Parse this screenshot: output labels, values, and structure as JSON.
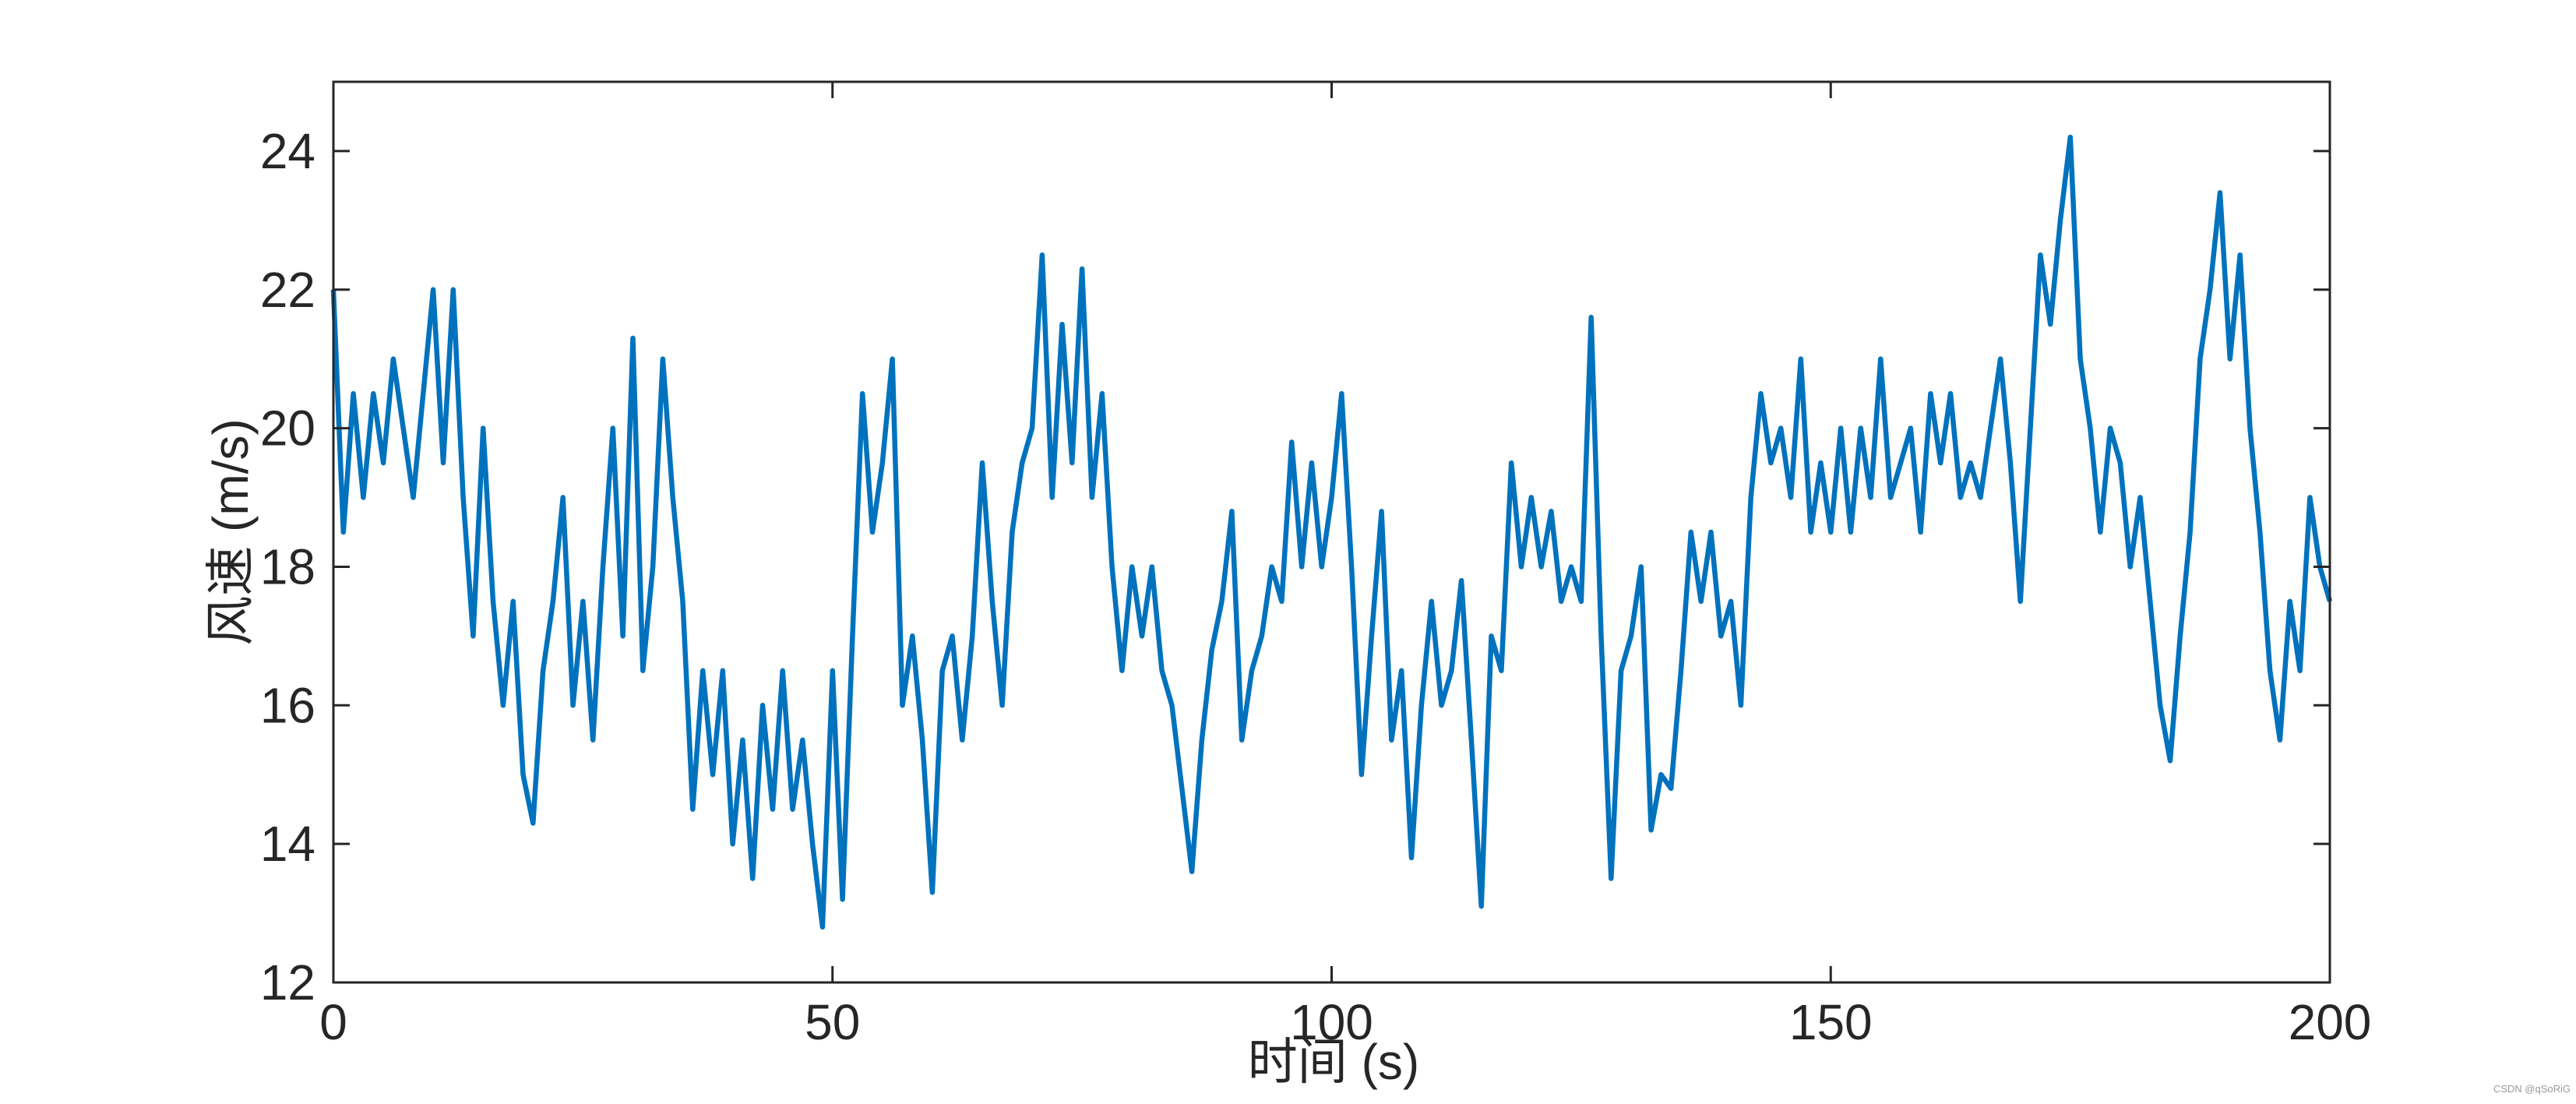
{
  "chart_data": {
    "type": "line",
    "xlabel": "时间 (s)",
    "ylabel": "风速 (m/s)",
    "watermark": "CSDN @qSoRiG",
    "color": "#0072BD",
    "x": [
      0,
      1,
      2,
      3,
      4,
      5,
      6,
      7,
      8,
      9,
      10,
      11,
      12,
      13,
      14,
      15,
      16,
      17,
      18,
      19,
      20,
      21,
      22,
      23,
      24,
      25,
      26,
      27,
      28,
      29,
      30,
      31,
      32,
      33,
      34,
      35,
      36,
      37,
      38,
      39,
      40,
      41,
      42,
      43,
      44,
      45,
      46,
      47,
      48,
      49,
      50,
      51,
      52,
      53,
      54,
      55,
      56,
      57,
      58,
      59,
      60,
      61,
      62,
      63,
      64,
      65,
      66,
      67,
      68,
      69,
      70,
      71,
      72,
      73,
      74,
      75,
      76,
      77,
      78,
      79,
      80,
      81,
      82,
      83,
      84,
      85,
      86,
      87,
      88,
      89,
      90,
      91,
      92,
      93,
      94,
      95,
      96,
      97,
      98,
      99,
      100,
      101,
      102,
      103,
      104,
      105,
      106,
      107,
      108,
      109,
      110,
      111,
      112,
      113,
      114,
      115,
      116,
      117,
      118,
      119,
      120,
      121,
      122,
      123,
      124,
      125,
      126,
      127,
      128,
      129,
      130,
      131,
      132,
      133,
      134,
      135,
      136,
      137,
      138,
      139,
      140,
      141,
      142,
      143,
      144,
      145,
      146,
      147,
      148,
      149,
      150,
      151,
      152,
      153,
      154,
      155,
      156,
      157,
      158,
      159,
      160,
      161,
      162,
      163,
      164,
      165,
      166,
      167,
      168,
      169,
      170,
      171,
      172,
      173,
      174,
      175,
      176,
      177,
      178,
      179,
      180,
      181,
      182,
      183,
      184,
      185,
      186,
      187,
      188,
      189,
      190,
      191,
      192,
      193,
      194,
      195,
      196,
      197,
      198,
      199,
      200
    ],
    "values": [
      22,
      18.5,
      20.5,
      19,
      20.5,
      19.5,
      21,
      20,
      19,
      20.5,
      22,
      19.5,
      22,
      19,
      17,
      20,
      17.5,
      16,
      17.5,
      15,
      14.3,
      16.5,
      17.5,
      19,
      16,
      17.5,
      15.5,
      18,
      20,
      17,
      21.3,
      16.5,
      18,
      21,
      19,
      17.5,
      14.5,
      16.5,
      15,
      16.5,
      14,
      15.5,
      13.5,
      16,
      14.5,
      16.5,
      14.5,
      15.5,
      14,
      12.8,
      16.5,
      13.2,
      17,
      20.5,
      18.5,
      19.5,
      21,
      16,
      17,
      15.5,
      13.3,
      16.5,
      17,
      15.5,
      17,
      19.5,
      17.5,
      16,
      18.5,
      19.5,
      20,
      22.5,
      19,
      21.5,
      19.5,
      22.3,
      19,
      20.5,
      18,
      16.5,
      18,
      17,
      18,
      16.5,
      16,
      14.8,
      13.6,
      15.5,
      16.8,
      17.5,
      18.8,
      15.5,
      16.5,
      17,
      18,
      17.5,
      19.8,
      18,
      19.5,
      18,
      19,
      20.5,
      18,
      15,
      17,
      18.8,
      15.5,
      16.5,
      13.8,
      16,
      17.5,
      16,
      16.5,
      17.8,
      15.5,
      13.1,
      17,
      16.5,
      19.5,
      18,
      19,
      18,
      18.8,
      17.5,
      18,
      17.5,
      21.6,
      17,
      13.5,
      16.5,
      17,
      18,
      14.2,
      15,
      14.8,
      16.5,
      18.5,
      17.5,
      18.5,
      17,
      17.5,
      16,
      19,
      20.5,
      19.5,
      20,
      19,
      21,
      18.5,
      19.5,
      18.5,
      20,
      18.5,
      20,
      19,
      21,
      19,
      19.5,
      20,
      18.5,
      20.5,
      19.5,
      20.5,
      19,
      19.5,
      19,
      20,
      21,
      19.5,
      17.5,
      20,
      22.5,
      21.5,
      23,
      24.2,
      21,
      20,
      18.5,
      20,
      19.5,
      18,
      19,
      17.5,
      16,
      15.2,
      17,
      18.5,
      21,
      22,
      23.4,
      21,
      22.5,
      20,
      18.5,
      16.5,
      15.5,
      17.5,
      16.5,
      19,
      18,
      17.5
    ],
    "xlim": [
      0,
      200
    ],
    "xticks": [
      0,
      50,
      100,
      150,
      200
    ],
    "ylim": [
      12,
      25
    ],
    "yticks": [
      12,
      14,
      16,
      18,
      20,
      22,
      24
    ]
  }
}
